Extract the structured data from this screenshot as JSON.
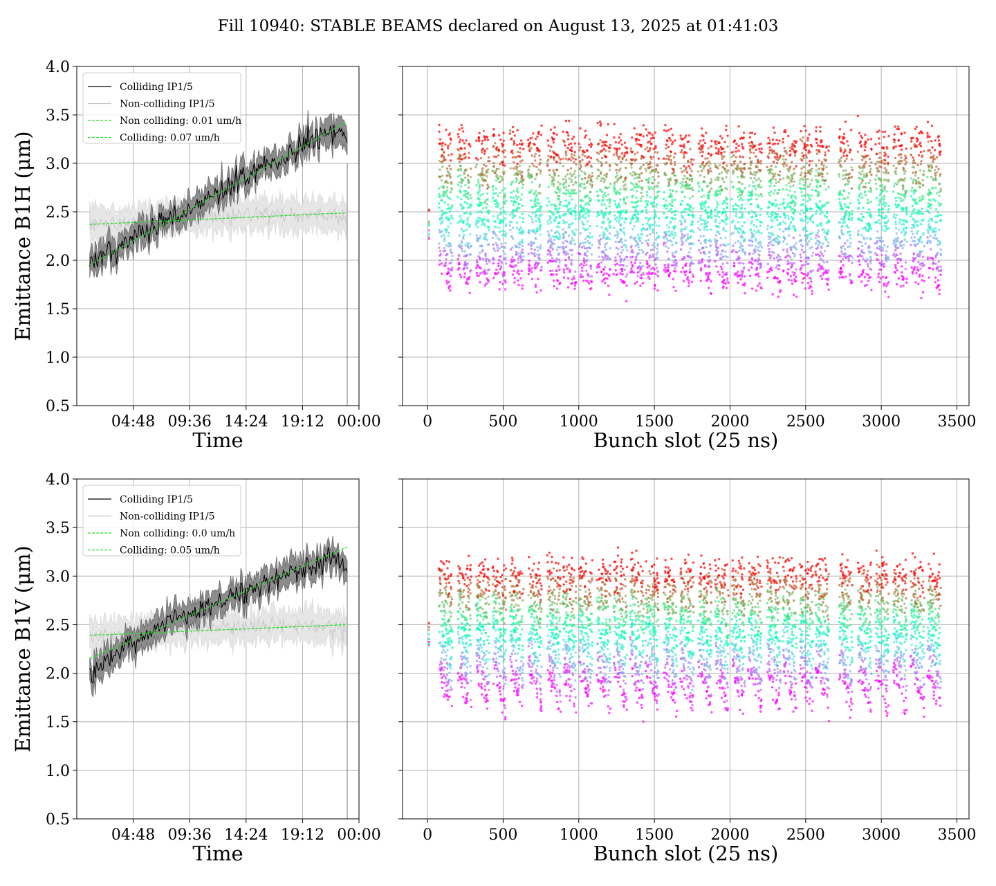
{
  "figure": {
    "title": "Fill 10940: STABLE BEAMS declared on August 13, 2025 at 01:41:03"
  },
  "colors": {
    "colliding": "#000000",
    "colliding_band": "#8c8c8c",
    "non_colliding": "#c8c8c8",
    "non_colliding_band": "#e6e6e6",
    "fit": "#22dd22",
    "grid": "#b0b0b0",
    "scatter_colormap": "rainbow"
  },
  "chart_data": [
    {
      "id": "b1h-time",
      "type": "line",
      "xlabel": "Time",
      "ylabel": "Emittance B1H (μm)",
      "xticks": [
        "04:48",
        "09:36",
        "14:24",
        "19:12",
        "00:00"
      ],
      "xtick_hours": [
        4.8,
        9.6,
        14.4,
        19.2,
        24.0
      ],
      "xlim_hours": [
        0.0,
        24.0
      ],
      "ylim": [
        0.5,
        4.0
      ],
      "yticks": [
        "0.5",
        "1.0",
        "1.5",
        "2.0",
        "2.5",
        "3.0",
        "3.5",
        "4.0"
      ],
      "grid": true,
      "legend_position": "upper left",
      "series": [
        {
          "name": "Colliding IP1/5",
          "kind": "line",
          "color": "#000000",
          "x_hours": [
            1.1,
            2.5,
            4.0,
            5.5,
            7.0,
            8.5,
            10.0,
            11.5,
            13.0,
            14.5,
            16.0,
            17.5,
            19.0,
            20.5,
            21.5,
            22.5,
            23.0
          ],
          "y": [
            1.97,
            2.07,
            2.17,
            2.27,
            2.36,
            2.45,
            2.55,
            2.66,
            2.76,
            2.86,
            2.96,
            3.06,
            3.17,
            3.27,
            3.31,
            3.28,
            3.22
          ],
          "band": 0.11
        },
        {
          "name": "Non-colliding IP1/5",
          "kind": "line",
          "color": "#c8c8c8",
          "x_hours": [
            1.1,
            3.0,
            5.0,
            7.0,
            9.0,
            11.0,
            13.0,
            15.0,
            17.0,
            19.0,
            21.0,
            23.0
          ],
          "y": [
            2.36,
            2.38,
            2.41,
            2.43,
            2.44,
            2.45,
            2.46,
            2.47,
            2.47,
            2.48,
            2.48,
            2.45
          ],
          "band": 0.13
        },
        {
          "name": "Non colliding: 0.01 um/h",
          "kind": "fit",
          "color": "#22dd22",
          "x_hours": [
            1.1,
            23.0
          ],
          "y": [
            2.37,
            2.49
          ]
        },
        {
          "name": "Colliding: 0.07 um/h",
          "kind": "fit",
          "color": "#22dd22",
          "x_hours": [
            1.1,
            23.0
          ],
          "y": [
            1.95,
            3.43
          ]
        }
      ]
    },
    {
      "id": "b1h-bunch",
      "type": "scatter",
      "xlabel": "Bunch slot (25 ns)",
      "xticks": [
        0,
        500,
        1000,
        1500,
        2000,
        2500,
        3000,
        3500
      ],
      "xlim": [
        -165,
        3580
      ],
      "ylim": [
        0.5,
        4.0
      ],
      "grid": true,
      "colormap": "rainbow",
      "color_encoding": "time (purple = start of fill, red = end of fill)",
      "bunch_slot_groups": [
        [
          75,
          165
        ],
        [
          200,
          290
        ],
        [
          320,
          410
        ],
        [
          430,
          520
        ],
        [
          545,
          635
        ],
        [
          665,
          755
        ],
        [
          790,
          880
        ],
        [
          895,
          985
        ],
        [
          1000,
          1090
        ],
        [
          1120,
          1210
        ],
        [
          1230,
          1320
        ],
        [
          1340,
          1430
        ],
        [
          1440,
          1530
        ],
        [
          1560,
          1650
        ],
        [
          1670,
          1760
        ],
        [
          1790,
          1880
        ],
        [
          1900,
          1990
        ],
        [
          2010,
          2100
        ],
        [
          2120,
          2210
        ],
        [
          2245,
          2335
        ],
        [
          2350,
          2440
        ],
        [
          2460,
          2550
        ],
        [
          2565,
          2655
        ],
        [
          2720,
          2810
        ],
        [
          2845,
          2935
        ],
        [
          2960,
          3050
        ],
        [
          3080,
          3170
        ],
        [
          3195,
          3285
        ],
        [
          3305,
          3395
        ]
      ],
      "pilot_bunch_slot": 10,
      "emittance_start": [
        1.95,
        1.75
      ],
      "emittance_end": [
        3.25,
        3.15
      ]
    },
    {
      "id": "b1v-time",
      "type": "line",
      "xlabel": "Time",
      "ylabel": "Emittance B1V (μm)",
      "xticks": [
        "04:48",
        "09:36",
        "14:24",
        "19:12",
        "00:00"
      ],
      "xtick_hours": [
        4.8,
        9.6,
        14.4,
        19.2,
        24.0
      ],
      "xlim_hours": [
        0.0,
        24.0
      ],
      "ylim": [
        0.5,
        4.0
      ],
      "yticks": [
        "0.5",
        "1.0",
        "1.5",
        "2.0",
        "2.5",
        "3.0",
        "3.5",
        "4.0"
      ],
      "grid": true,
      "legend_position": "upper left",
      "series": [
        {
          "name": "Colliding IP1/5",
          "kind": "line",
          "color": "#000000",
          "x_hours": [
            1.1,
            2.5,
            4.0,
            5.5,
            7.0,
            8.5,
            10.0,
            11.5,
            13.0,
            14.5,
            16.0,
            17.5,
            19.0,
            20.5,
            21.5,
            22.5,
            23.0
          ],
          "y": [
            1.98,
            2.13,
            2.26,
            2.38,
            2.47,
            2.55,
            2.62,
            2.7,
            2.78,
            2.85,
            2.92,
            2.99,
            3.07,
            3.13,
            3.16,
            3.14,
            3.12
          ],
          "band": 0.11
        },
        {
          "name": "Non-colliding IP1/5",
          "kind": "line",
          "color": "#c8c8c8",
          "x_hours": [
            1.1,
            3.0,
            5.0,
            7.0,
            9.0,
            11.0,
            13.0,
            15.0,
            17.0,
            19.0,
            21.0,
            23.0
          ],
          "y": [
            2.36,
            2.39,
            2.42,
            2.44,
            2.46,
            2.47,
            2.48,
            2.48,
            2.49,
            2.49,
            2.48,
            2.45
          ],
          "band": 0.13
        },
        {
          "name": "Non colliding: 0.0 um/h",
          "kind": "fit",
          "color": "#22dd22",
          "x_hours": [
            1.1,
            23.0
          ],
          "y": [
            2.39,
            2.5
          ]
        },
        {
          "name": "Colliding: 0.05 um/h",
          "kind": "fit",
          "color": "#22dd22",
          "x_hours": [
            1.1,
            23.0
          ],
          "y": [
            2.15,
            3.3
          ]
        }
      ]
    },
    {
      "id": "b1v-bunch",
      "type": "scatter",
      "xlabel": "Bunch slot (25 ns)",
      "xticks": [
        0,
        500,
        1000,
        1500,
        2000,
        2500,
        3000,
        3500
      ],
      "xlim": [
        -165,
        3580
      ],
      "ylim": [
        0.5,
        4.0
      ],
      "grid": true,
      "colormap": "rainbow",
      "color_encoding": "time (purple = start of fill, red = end of fill)",
      "bunch_slot_groups": [
        [
          75,
          165
        ],
        [
          200,
          290
        ],
        [
          320,
          410
        ],
        [
          430,
          520
        ],
        [
          545,
          635
        ],
        [
          665,
          755
        ],
        [
          790,
          880
        ],
        [
          895,
          985
        ],
        [
          1000,
          1090
        ],
        [
          1120,
          1210
        ],
        [
          1230,
          1320
        ],
        [
          1340,
          1430
        ],
        [
          1440,
          1530
        ],
        [
          1560,
          1650
        ],
        [
          1670,
          1760
        ],
        [
          1790,
          1880
        ],
        [
          1900,
          1990
        ],
        [
          2010,
          2100
        ],
        [
          2120,
          2210
        ],
        [
          2245,
          2335
        ],
        [
          2350,
          2440
        ],
        [
          2460,
          2550
        ],
        [
          2565,
          2655
        ],
        [
          2720,
          2810
        ],
        [
          2845,
          2935
        ],
        [
          2960,
          3050
        ],
        [
          3080,
          3170
        ],
        [
          3195,
          3285
        ],
        [
          3305,
          3395
        ]
      ],
      "pilot_bunch_slot": 10,
      "emittance_start": [
        2.05,
        1.65
      ],
      "emittance_end": [
        3.05,
        3.0
      ]
    }
  ]
}
